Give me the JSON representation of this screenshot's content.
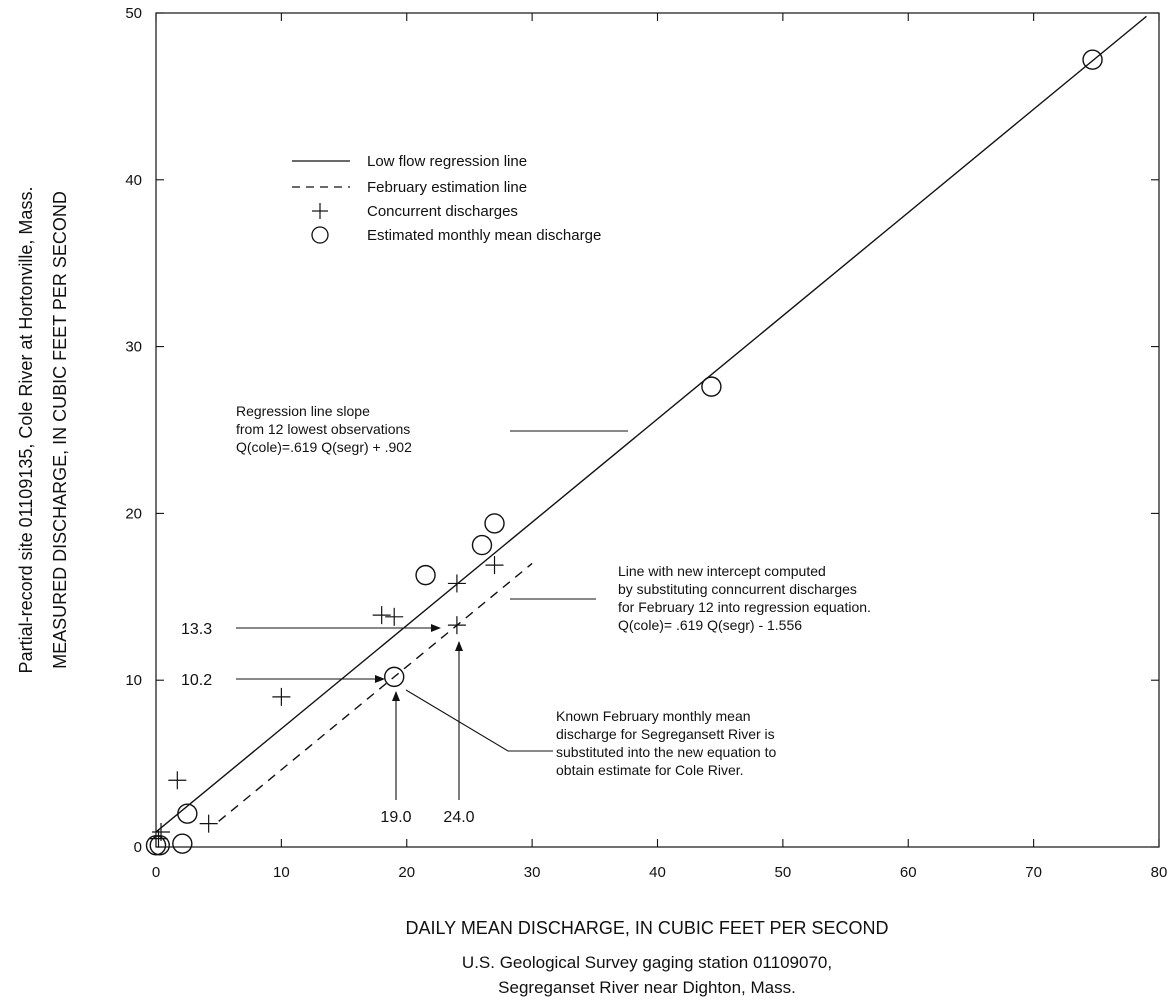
{
  "chart_data": {
    "type": "scatter",
    "xlim": [
      0,
      80
    ],
    "ylim": [
      0,
      50
    ],
    "x_ticks": [
      0,
      10,
      20,
      30,
      40,
      50,
      60,
      70,
      80
    ],
    "y_ticks": [
      0,
      10,
      20,
      30,
      40,
      50
    ],
    "xlabel": "DAILY MEAN DISCHARGE, IN CUBIC FEET PER SECOND",
    "xlabel_sub": [
      "U.S. Geological Survey gaging station 01109070,",
      "Segreganset River near Dighton, Mass."
    ],
    "ylabel_line1": "Partial-record site 01109135, Cole River at Hortonville, Mass.",
    "ylabel_line2": "MEASURED DISCHARGE, IN CUBIC FEET PER SECOND",
    "legend": [
      {
        "symbol": "solid-line",
        "label": "Low flow regression line"
      },
      {
        "symbol": "dashed-line",
        "label": "February estimation line"
      },
      {
        "symbol": "plus",
        "label": "Concurrent discharges"
      },
      {
        "symbol": "circle",
        "label": "Estimated monthly mean discharge"
      }
    ],
    "lines": [
      {
        "name": "Low flow regression line",
        "style": "solid",
        "x": [
          0,
          79
        ],
        "y": [
          0.902,
          49.8
        ]
      },
      {
        "name": "February estimation line",
        "style": "dashed",
        "x": [
          5,
          30
        ],
        "y": [
          1.54,
          17.0
        ]
      }
    ],
    "series": [
      {
        "name": "Concurrent discharges",
        "marker": "plus",
        "points": [
          [
            0.2,
            0.5
          ],
          [
            0.4,
            0.9
          ],
          [
            1.7,
            4.0
          ],
          [
            4.2,
            1.4
          ],
          [
            10.0,
            9.0
          ],
          [
            18.0,
            13.9
          ],
          [
            19.0,
            13.8
          ],
          [
            24.0,
            15.8
          ],
          [
            24.0,
            13.3
          ],
          [
            27.0,
            16.9
          ]
        ]
      },
      {
        "name": "Estimated monthly mean discharge",
        "marker": "circle",
        "points": [
          [
            0.0,
            0.1
          ],
          [
            0.3,
            0.1
          ],
          [
            2.1,
            0.2
          ],
          [
            2.5,
            2.0
          ],
          [
            19.0,
            10.2
          ],
          [
            21.5,
            16.3
          ],
          [
            26.0,
            18.1
          ],
          [
            27.0,
            19.4
          ],
          [
            44.3,
            27.6
          ],
          [
            74.7,
            47.2
          ]
        ]
      }
    ],
    "annotations": {
      "regression": {
        "lines": [
          "Regression line slope",
          "from 12 lowest observations",
          "Q(cole)=.619 Q(segr) + .902"
        ]
      },
      "new_intercept": {
        "lines": [
          "Line with new intercept computed",
          "by substituting conncurrent discharges",
          "for February 12 into regression equation.",
          "Q(cole)= .619 Q(segr) - 1.556"
        ]
      },
      "known_february": {
        "lines": [
          "Known February monthly mean",
          "discharge for Segregansett River is",
          "substituted into the new equation to",
          "obtain estimate for Cole River."
        ]
      },
      "value_labels": {
        "y_13_3": "13.3",
        "y_10_2": "10.2",
        "x_19_0": "19.0",
        "x_24_0": "24.0"
      }
    }
  }
}
